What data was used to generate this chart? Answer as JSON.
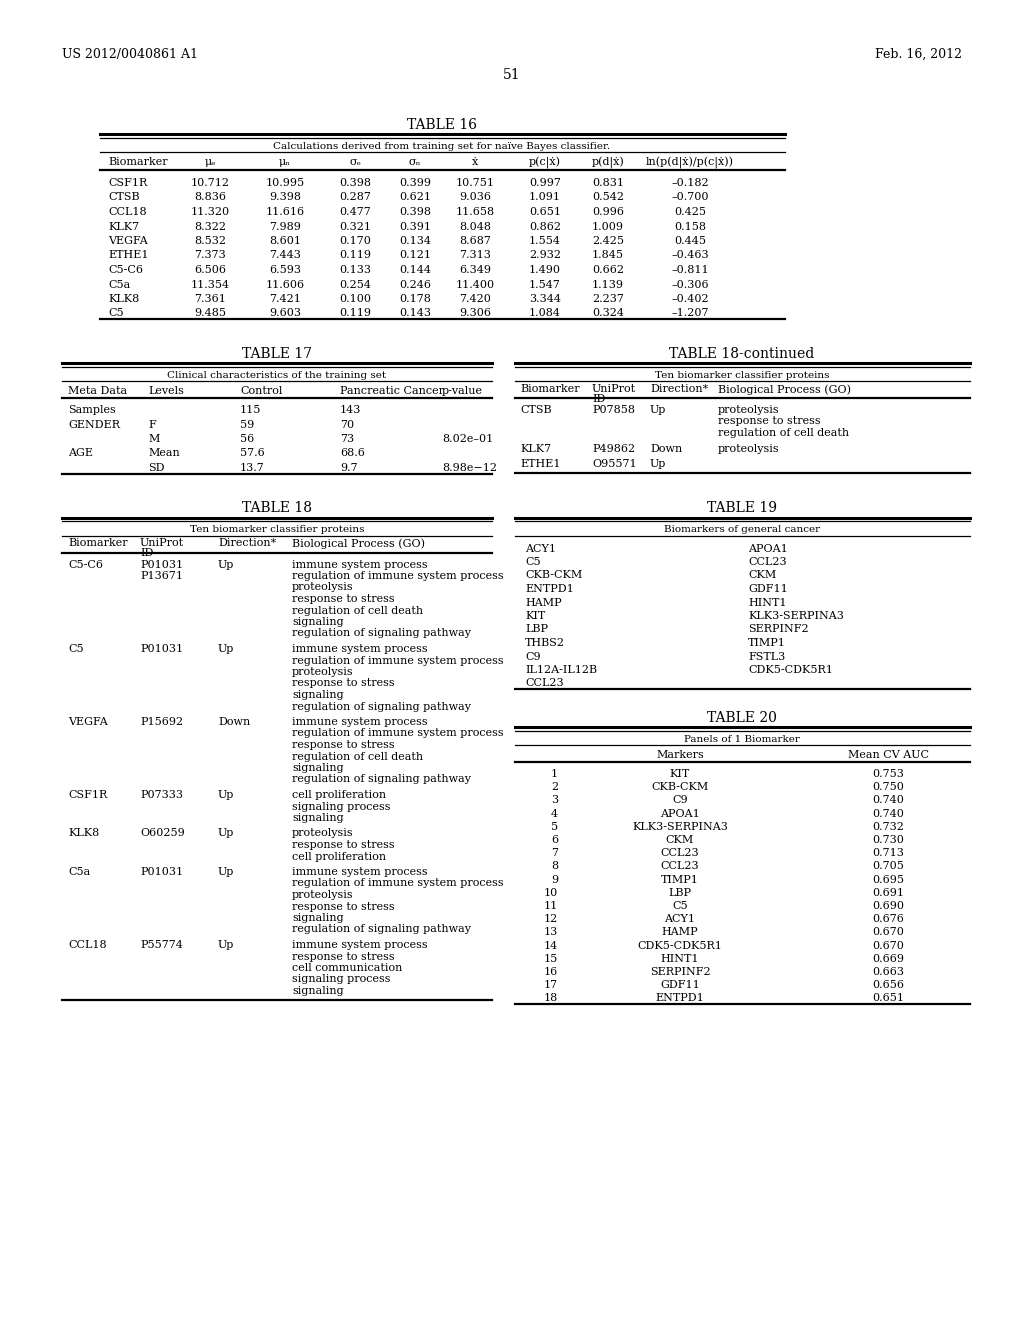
{
  "header_left": "US 2012/0040861 A1",
  "header_right": "Feb. 16, 2012",
  "page_number": "51",
  "table16": {
    "title": "TABLE 16",
    "subtitle": "Calculations derived from training set for naïve Bayes classifier.",
    "rows": [
      [
        "CSF1R",
        "10.712",
        "10.995",
        "0.398",
        "0.399",
        "10.751",
        "0.997",
        "0.831",
        "–0.182"
      ],
      [
        "CTSB",
        "8.836",
        "9.398",
        "0.287",
        "0.621",
        "9.036",
        "1.091",
        "0.542",
        "–0.700"
      ],
      [
        "CCL18",
        "11.320",
        "11.616",
        "0.477",
        "0.398",
        "11.658",
        "0.651",
        "0.996",
        "0.425"
      ],
      [
        "KLK7",
        "8.322",
        "7.989",
        "0.321",
        "0.391",
        "8.048",
        "0.862",
        "1.009",
        "0.158"
      ],
      [
        "VEGFA",
        "8.532",
        "8.601",
        "0.170",
        "0.134",
        "8.687",
        "1.554",
        "2.425",
        "0.445"
      ],
      [
        "ETHE1",
        "7.373",
        "7.443",
        "0.119",
        "0.121",
        "7.313",
        "2.932",
        "1.845",
        "–0.463"
      ],
      [
        "C5-C6",
        "6.506",
        "6.593",
        "0.133",
        "0.144",
        "6.349",
        "1.490",
        "0.662",
        "–0.811"
      ],
      [
        "C5a",
        "11.354",
        "11.606",
        "0.254",
        "0.246",
        "11.400",
        "1.547",
        "1.139",
        "–0.306"
      ],
      [
        "KLK8",
        "7.361",
        "7.421",
        "0.100",
        "0.178",
        "7.420",
        "3.344",
        "2.237",
        "–0.402"
      ],
      [
        "C5",
        "9.485",
        "9.603",
        "0.119",
        "0.143",
        "9.306",
        "1.084",
        "0.324",
        "–1.207"
      ]
    ]
  },
  "table17": {
    "title": "TABLE 17",
    "subtitle": "Clinical characteristics of the training set",
    "rows": [
      [
        "Samples",
        "",
        "115",
        "143",
        ""
      ],
      [
        "GENDER",
        "F",
        "59",
        "70",
        ""
      ],
      [
        "",
        "M",
        "56",
        "73",
        "8.02e–01"
      ],
      [
        "AGE",
        "Mean",
        "57.6",
        "68.6",
        ""
      ],
      [
        "",
        "SD",
        "13.7",
        "9.7",
        "8.98e−12"
      ]
    ]
  },
  "table18cont": {
    "title": "TABLE 18-continued",
    "subtitle": "Ten biomarker classifier proteins",
    "rows": [
      [
        "CTSB",
        "P07858",
        "Up",
        [
          "proteolysis",
          "response to stress",
          "regulation of cell death"
        ]
      ],
      [
        "KLK7",
        "P49862",
        "Down",
        [
          "proteolysis"
        ]
      ],
      [
        "ETHE1",
        "O95571",
        "Up",
        []
      ]
    ]
  },
  "table18": {
    "title": "TABLE 18",
    "subtitle": "Ten biomarker classifier proteins",
    "rows": [
      [
        "C5-C6",
        [
          "P01031",
          "P13671"
        ],
        "Up",
        [
          "immune system process",
          "regulation of immune system process",
          "proteolysis",
          "response to stress",
          "regulation of cell death",
          "signaling",
          "regulation of signaling pathway"
        ]
      ],
      [
        "C5",
        [
          "P01031"
        ],
        "Up",
        [
          "immune system process",
          "regulation of immune system process",
          "proteolysis",
          "response to stress",
          "signaling",
          "regulation of signaling pathway"
        ]
      ],
      [
        "VEGFA",
        [
          "P15692"
        ],
        "Down",
        [
          "immune system process",
          "regulation of immune system process",
          "response to stress",
          "regulation of cell death",
          "signaling",
          "regulation of signaling pathway"
        ]
      ],
      [
        "CSF1R",
        [
          "P07333"
        ],
        "Up",
        [
          "cell proliferation",
          "signaling process",
          "signaling"
        ]
      ],
      [
        "KLK8",
        [
          "O60259"
        ],
        "Up",
        [
          "proteolysis",
          "response to stress",
          "cell proliferation"
        ]
      ],
      [
        "C5a",
        [
          "P01031"
        ],
        "Up",
        [
          "immune system process",
          "regulation of immune system process",
          "proteolysis",
          "response to stress",
          "signaling",
          "regulation of signaling pathway"
        ]
      ],
      [
        "CCL18",
        [
          "P55774"
        ],
        "Up",
        [
          "immune system process",
          "response to stress",
          "cell communication",
          "signaling process",
          "signaling"
        ]
      ]
    ]
  },
  "table19": {
    "title": "TABLE 19",
    "subtitle": "Biomarkers of general cancer",
    "col1": [
      "ACY1",
      "C5",
      "CKB-CKM",
      "ENTPD1",
      "HAMP",
      "KIT",
      "LBP",
      "THBS2",
      "C9",
      "IL12A-IL12B",
      "CCL23"
    ],
    "col2": [
      "APOA1",
      "CCL23",
      "CKM",
      "GDF11",
      "HINT1",
      "KLK3-SERPINA3",
      "SERPINF2",
      "TIMP1",
      "FSTL3",
      "CDK5-CDK5R1",
      ""
    ]
  },
  "table20": {
    "title": "TABLE 20",
    "subtitle": "Panels of 1 Biomarker",
    "rows": [
      [
        "1",
        "KIT",
        "0.753"
      ],
      [
        "2",
        "CKB-CKM",
        "0.750"
      ],
      [
        "3",
        "C9",
        "0.740"
      ],
      [
        "4",
        "APOA1",
        "0.740"
      ],
      [
        "5",
        "KLK3-SERPINA3",
        "0.732"
      ],
      [
        "6",
        "CKM",
        "0.730"
      ],
      [
        "7",
        "CCL23",
        "0.713"
      ],
      [
        "8",
        "CCL23",
        "0.705"
      ],
      [
        "9",
        "TIMP1",
        "0.695"
      ],
      [
        "10",
        "LBP",
        "0.691"
      ],
      [
        "11",
        "C5",
        "0.690"
      ],
      [
        "12",
        "ACY1",
        "0.676"
      ],
      [
        "13",
        "HAMP",
        "0.670"
      ],
      [
        "14",
        "CDK5-CDK5R1",
        "0.670"
      ],
      [
        "15",
        "HINT1",
        "0.669"
      ],
      [
        "16",
        "SERPINF2",
        "0.663"
      ],
      [
        "17",
        "GDF11",
        "0.656"
      ],
      [
        "18",
        "ENTPD1",
        "0.651"
      ]
    ]
  }
}
